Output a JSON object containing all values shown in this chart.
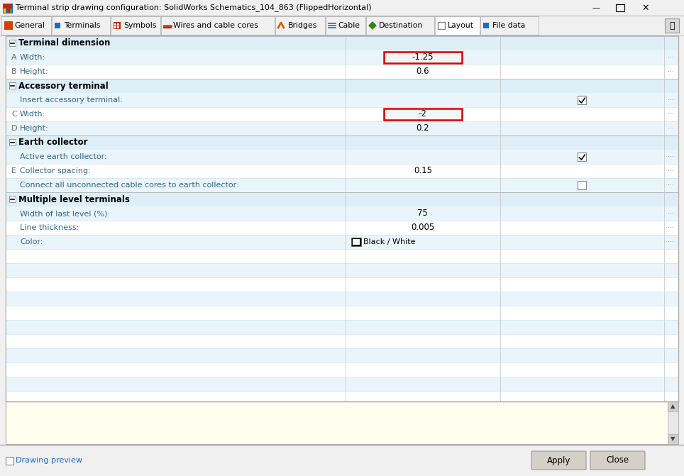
{
  "title": "Terminal strip drawing configuration: SolidWorks Schematics_104_863 (FlippedHorizontal)",
  "bg_color": "#f0f0f0",
  "tabs": [
    "General",
    "Terminals",
    "Symbols",
    "Wires and cable cores",
    "Bridges",
    "Cable",
    "Destination",
    "Layout",
    "File data"
  ],
  "tab_icon_colors": [
    "#cc4400",
    "#1a6ac8",
    "#cc2200",
    "#cc4400",
    "#cc6600",
    "#1a6ac8",
    "#338800",
    "#cccccc",
    "#1a6ac8"
  ],
  "rows": [
    {
      "type": "section",
      "label": "Terminal dimension"
    },
    {
      "type": "row",
      "prefix": "A",
      "label": "Width:",
      "value": "-1.25",
      "highlight": true,
      "checkbox": false,
      "checked": false,
      "row_color": "#eaf5fb"
    },
    {
      "type": "row",
      "prefix": "B",
      "label": "Height:",
      "value": "0.6",
      "highlight": false,
      "checkbox": false,
      "checked": false,
      "row_color": "#ffffff"
    },
    {
      "type": "section",
      "label": "Accessory terminal"
    },
    {
      "type": "row",
      "prefix": "",
      "label": "Insert accessory terminal:",
      "value": "",
      "highlight": false,
      "checkbox": true,
      "checked": true,
      "row_color": "#eaf5fb"
    },
    {
      "type": "row",
      "prefix": "C",
      "label": "Width:",
      "value": "-2",
      "highlight": true,
      "checkbox": false,
      "checked": false,
      "row_color": "#ffffff"
    },
    {
      "type": "row",
      "prefix": "D",
      "label": "Height:",
      "value": "0.2",
      "highlight": false,
      "checkbox": false,
      "checked": false,
      "row_color": "#eaf5fb"
    },
    {
      "type": "section",
      "label": "Earth collector"
    },
    {
      "type": "row",
      "prefix": "",
      "label": "Active earth collector:",
      "value": "",
      "highlight": false,
      "checkbox": true,
      "checked": true,
      "row_color": "#eaf5fb"
    },
    {
      "type": "row",
      "prefix": "E",
      "label": "Collector spacing:",
      "value": "0.15",
      "highlight": false,
      "checkbox": false,
      "checked": false,
      "row_color": "#ffffff"
    },
    {
      "type": "row",
      "prefix": "",
      "label": "Connect all unconnected cable cores to earth collector:",
      "value": "",
      "highlight": false,
      "checkbox": true,
      "checked": false,
      "row_color": "#eaf5fb"
    },
    {
      "type": "section",
      "label": "Multiple level terminals"
    },
    {
      "type": "row",
      "prefix": "",
      "label": "Width of last level (%):",
      "value": "75",
      "highlight": false,
      "checkbox": false,
      "checked": false,
      "row_color": "#eaf5fb"
    },
    {
      "type": "row",
      "prefix": "",
      "label": "Line thickness:",
      "value": "0.005",
      "highlight": false,
      "checkbox": false,
      "checked": false,
      "row_color": "#ffffff"
    },
    {
      "type": "row",
      "prefix": "",
      "label": "Color:",
      "value": "",
      "highlight": false,
      "checkbox": false,
      "checked": false,
      "color_swatch": true,
      "row_color": "#eaf5fb"
    }
  ],
  "drawing_preview_text": "Drawing preview",
  "apply_btn": "Apply",
  "close_btn": "Close"
}
